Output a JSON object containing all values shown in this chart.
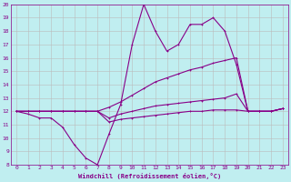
{
  "x": [
    0,
    1,
    2,
    3,
    4,
    5,
    6,
    7,
    8,
    9,
    10,
    11,
    12,
    13,
    14,
    15,
    16,
    17,
    18,
    19,
    20,
    21,
    22,
    23
  ],
  "line_volatile": [
    12,
    11.8,
    11.5,
    11.5,
    10.8,
    9.5,
    8.5,
    8.0,
    10.3,
    12.5,
    17.0,
    20.0,
    18.0,
    16.5,
    17.0,
    18.5,
    18.5,
    19.0,
    18.0,
    15.5,
    12.0,
    12.0,
    12.0,
    12.2
  ],
  "line_upper": [
    12,
    12,
    12,
    12,
    12,
    12,
    12,
    12,
    12.3,
    12.7,
    13.2,
    13.7,
    14.2,
    14.5,
    14.8,
    15.1,
    15.3,
    15.6,
    15.8,
    16.0,
    12.0,
    12.0,
    12.0,
    12.2
  ],
  "line_mid": [
    12,
    12,
    12,
    12,
    12,
    12,
    12,
    12,
    11.5,
    11.8,
    12.0,
    12.2,
    12.4,
    12.5,
    12.6,
    12.7,
    12.8,
    12.9,
    13.0,
    13.3,
    12.0,
    12.0,
    12.0,
    12.2
  ],
  "line_flat": [
    12,
    12,
    12,
    12,
    12,
    12,
    12,
    12,
    11.2,
    11.4,
    11.5,
    11.6,
    11.7,
    11.8,
    11.9,
    12.0,
    12.0,
    12.1,
    12.1,
    12.1,
    12.0,
    12.0,
    12.0,
    12.2
  ],
  "background": "#c0eef0",
  "line_color": "#880088",
  "grid_color": "#bbbbbb",
  "xlabel": "Windchill (Refroidissement éolien,°C)",
  "ylim": [
    8,
    20
  ],
  "xlim": [
    -0.5,
    23.5
  ],
  "yticks": [
    8,
    9,
    10,
    11,
    12,
    13,
    14,
    15,
    16,
    17,
    18,
    19,
    20
  ],
  "xticks": [
    0,
    1,
    2,
    3,
    4,
    5,
    6,
    7,
    8,
    9,
    10,
    11,
    12,
    13,
    14,
    15,
    16,
    17,
    18,
    19,
    20,
    21,
    22,
    23
  ]
}
